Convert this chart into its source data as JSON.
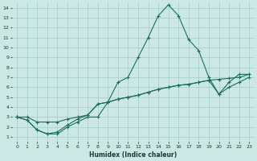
{
  "xlabel": "Humidex (Indice chaleur)",
  "bg_color": "#cce8e4",
  "grid_color": "#aacfca",
  "line_color": "#1a6e64",
  "xlim": [
    -0.5,
    23.5
  ],
  "ylim": [
    0.5,
    14.5
  ],
  "xticks": [
    0,
    1,
    2,
    3,
    4,
    5,
    6,
    7,
    8,
    9,
    10,
    11,
    12,
    13,
    14,
    15,
    16,
    17,
    18,
    19,
    20,
    21,
    22,
    23
  ],
  "yticks": [
    1,
    2,
    3,
    4,
    5,
    6,
    7,
    8,
    9,
    10,
    11,
    12,
    13,
    14
  ],
  "series1": [
    [
      0,
      3
    ],
    [
      1,
      2.7
    ],
    [
      2,
      1.7
    ],
    [
      3,
      1.3
    ],
    [
      4,
      1.3
    ],
    [
      5,
      2.0
    ],
    [
      6,
      2.5
    ],
    [
      7,
      3.0
    ],
    [
      8,
      3.0
    ],
    [
      9,
      4.5
    ],
    [
      10,
      6.5
    ],
    [
      11,
      7.0
    ],
    [
      12,
      9.0
    ],
    [
      13,
      11.0
    ],
    [
      14,
      13.2
    ],
    [
      15,
      14.3
    ],
    [
      16,
      13.2
    ],
    [
      17,
      10.8
    ],
    [
      18,
      9.7
    ],
    [
      19,
      7.0
    ],
    [
      20,
      5.3
    ],
    [
      21,
      6.5
    ],
    [
      22,
      7.3
    ],
    [
      23,
      7.3
    ]
  ],
  "series2": [
    [
      0,
      3
    ],
    [
      1,
      2.7
    ],
    [
      2,
      1.7
    ],
    [
      3,
      1.3
    ],
    [
      4,
      1.5
    ],
    [
      5,
      2.2
    ],
    [
      6,
      2.8
    ],
    [
      7,
      3.2
    ],
    [
      8,
      4.3
    ],
    [
      9,
      4.5
    ],
    [
      10,
      4.8
    ],
    [
      11,
      5.0
    ],
    [
      12,
      5.2
    ],
    [
      13,
      5.5
    ],
    [
      14,
      5.8
    ],
    [
      15,
      6.0
    ],
    [
      16,
      6.2
    ],
    [
      17,
      6.3
    ],
    [
      18,
      6.5
    ],
    [
      19,
      6.7
    ],
    [
      20,
      5.3
    ],
    [
      21,
      6.0
    ],
    [
      22,
      6.5
    ],
    [
      23,
      7.0
    ]
  ],
  "series3": [
    [
      0,
      3
    ],
    [
      1,
      3.0
    ],
    [
      2,
      2.5
    ],
    [
      3,
      2.5
    ],
    [
      4,
      2.5
    ],
    [
      5,
      2.8
    ],
    [
      6,
      3.0
    ],
    [
      7,
      3.2
    ],
    [
      8,
      4.3
    ],
    [
      9,
      4.5
    ],
    [
      10,
      4.8
    ],
    [
      11,
      5.0
    ],
    [
      12,
      5.2
    ],
    [
      13,
      5.5
    ],
    [
      14,
      5.8
    ],
    [
      15,
      6.0
    ],
    [
      16,
      6.2
    ],
    [
      17,
      6.3
    ],
    [
      18,
      6.5
    ],
    [
      19,
      6.7
    ],
    [
      20,
      6.8
    ],
    [
      21,
      6.9
    ],
    [
      22,
      7.0
    ],
    [
      23,
      7.3
    ]
  ]
}
